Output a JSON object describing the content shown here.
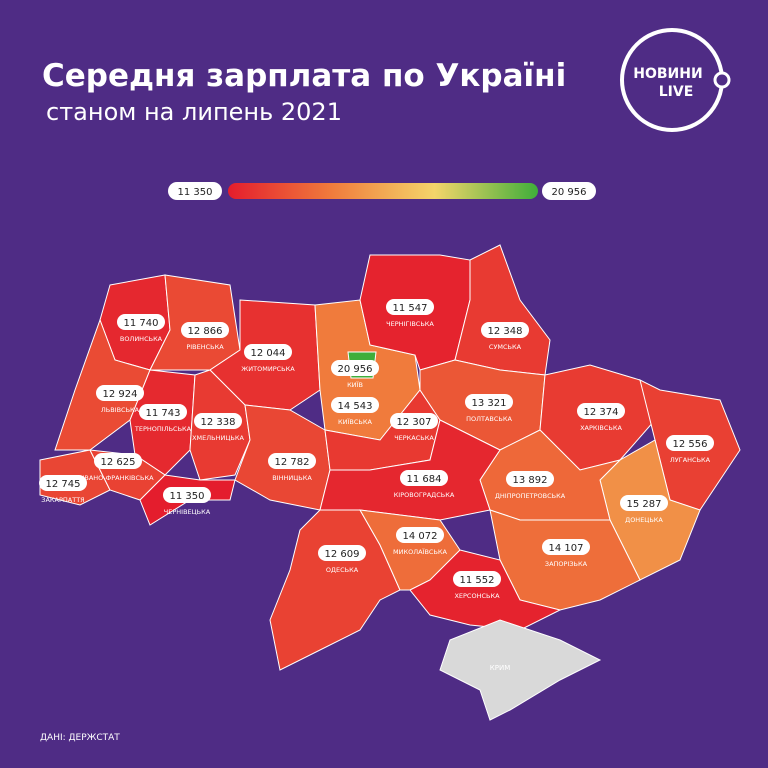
{
  "header": {
    "title": "Середня зарплата по Україні",
    "subtitle": "станом на липень 2021"
  },
  "logo": {
    "line1": "НОВИНИ",
    "line2": "LIVE"
  },
  "legend": {
    "min": 11350,
    "max": 20956,
    "min_label": "11 350",
    "max_label": "20 956",
    "colors": [
      "#e41d2d",
      "#f07b3c",
      "#f4d56a",
      "#3fae3a"
    ]
  },
  "regions": [
    {
      "name": "ВОЛИНСЬКА",
      "value": 11740,
      "value_label": "11 740"
    },
    {
      "name": "РІВЕНСЬКА",
      "value": 12866,
      "value_label": "12 866"
    },
    {
      "name": "ЖИТОМИРСЬКА",
      "value": 12044,
      "value_label": "12 044"
    },
    {
      "name": "КИЇВСЬКА",
      "value": 14543,
      "value_label": "14 543"
    },
    {
      "name": "КИЇВ",
      "value": 20956,
      "value_label": "20 956"
    },
    {
      "name": "ЧЕРНІГІВСЬКА",
      "value": 11547,
      "value_label": "11 547"
    },
    {
      "name": "СУМСЬКА",
      "value": 12348,
      "value_label": "12 348"
    },
    {
      "name": "ЛЬВІВСЬКА",
      "value": 12924,
      "value_label": "12 924"
    },
    {
      "name": "ТЕРНОПІЛЬСЬКА",
      "value": 11743,
      "value_label": "11 743"
    },
    {
      "name": "ХМЕЛЬНИЦЬКА",
      "value": 12338,
      "value_label": "12 338"
    },
    {
      "name": "ЗАКАРПАТТЯ",
      "value": 12745,
      "value_label": "12 745"
    },
    {
      "name": "ІВАНО-ФРАНКІВСЬКА",
      "value": 12625,
      "value_label": "12 625"
    },
    {
      "name": "ЧЕРНІВЕЦЬКА",
      "value": 11350,
      "value_label": "11 350"
    },
    {
      "name": "ВІННИЦЬКА",
      "value": 12782,
      "value_label": "12 782"
    },
    {
      "name": "ЧЕРКАСЬКА",
      "value": 12307,
      "value_label": "12 307"
    },
    {
      "name": "ПОЛТАВСЬКА",
      "value": 13321,
      "value_label": "13 321"
    },
    {
      "name": "ХАРКІВСЬКА",
      "value": 12374,
      "value_label": "12 374"
    },
    {
      "name": "ЛУГАНСЬКА",
      "value": 12556,
      "value_label": "12 556"
    },
    {
      "name": "ДОНЕЦЬКА",
      "value": 15287,
      "value_label": "15 287"
    },
    {
      "name": "ДНІПРОПЕТРОВСЬКА",
      "value": 13892,
      "value_label": "13 892"
    },
    {
      "name": "КІРОВОГРАДСЬКА",
      "value": 11684,
      "value_label": "11 684"
    },
    {
      "name": "ОДЕСЬКА",
      "value": 12609,
      "value_label": "12 609"
    },
    {
      "name": "МИКОЛАЇВСЬКА",
      "value": 14072,
      "value_label": "14 072"
    },
    {
      "name": "ЗАПОРІЗЬКА",
      "value": 14107,
      "value_label": "14 107"
    },
    {
      "name": "ХЕРСОНСЬКА",
      "value": 11552,
      "value_label": "11 552"
    }
  ],
  "crimea": {
    "name": "КРИМ"
  },
  "source": "ДАНІ: ДЕРЖСТАТ"
}
